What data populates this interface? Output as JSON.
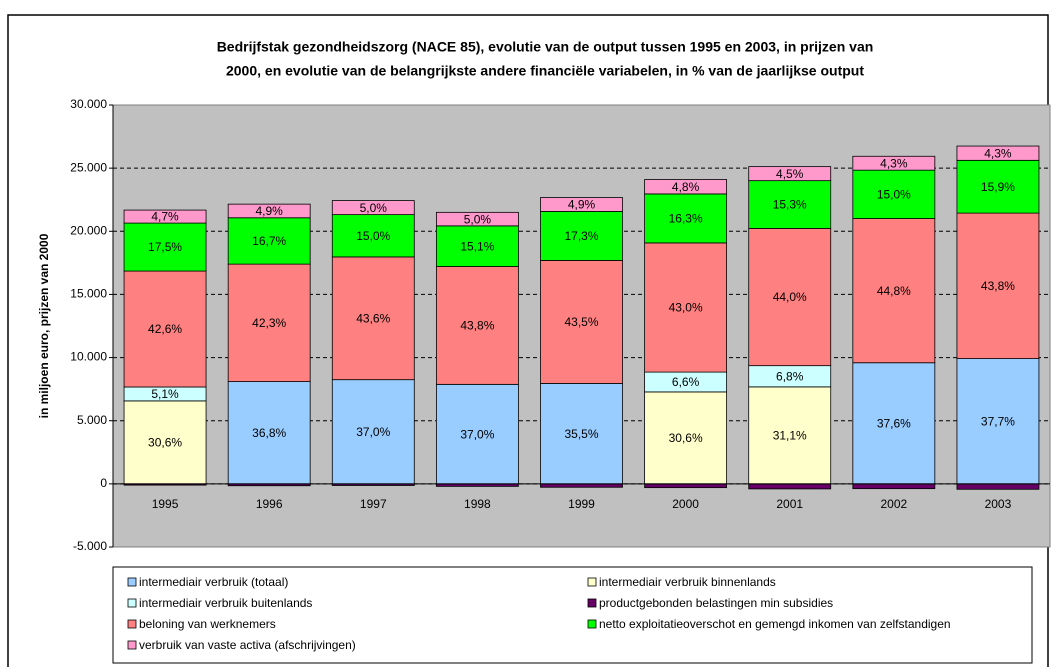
{
  "chart_data": {
    "type": "stacked-bar",
    "title": [
      "Bedrijfstak gezondheidszorg (NACE 85), evolutie van de output tussen 1995 en 2003, in prijzen van",
      "2000, en evolutie van de belangrijkste andere financiële variabelen, in % van de jaarlijkse output"
    ],
    "y_label": "in miljoen euro, prijzen van 2000",
    "categories": [
      "1995",
      "1996",
      "1997",
      "1998",
      "1999",
      "2000",
      "2001",
      "2002",
      "2003"
    ],
    "series": [
      {
        "name": "intermediair verbruik (totaal)",
        "color": "#99ccff",
        "values": [
          null,
          8100,
          8250,
          7880,
          7950,
          null,
          null,
          9590,
          9920
        ],
        "labels": [
          null,
          "36,8%",
          "37,0%",
          "37,0%",
          "35,5%",
          null,
          null,
          "37,6%",
          "37,7%"
        ]
      },
      {
        "name": "intermediair verbruik binnenlands",
        "color": "#ffffcc",
        "values": [
          6570,
          null,
          null,
          null,
          null,
          7280,
          7680,
          null,
          null
        ],
        "labels": [
          "30,6%",
          null,
          null,
          null,
          null,
          "30,6%",
          "31,1%",
          null,
          null
        ]
      },
      {
        "name": "intermediair verbruik buitenlands",
        "color": "#ccffff",
        "values": [
          1100,
          null,
          null,
          null,
          null,
          1570,
          1680,
          null,
          null
        ],
        "labels": [
          "5,1%",
          null,
          null,
          null,
          null,
          "6,6%",
          "6,8%",
          null,
          null
        ]
      },
      {
        "name": "productgebonden belastingen min subsidies",
        "color": "#660066",
        "values": [
          -100,
          -150,
          -130,
          -200,
          -270,
          -300,
          -400,
          -380,
          -430
        ]
      },
      {
        "name": "beloning van werknemers",
        "color": "#ff8080",
        "values": [
          9180,
          9300,
          9720,
          9330,
          9740,
          10230,
          10870,
          11420,
          11520
        ],
        "labels": [
          "42,6%",
          "42,3%",
          "43,6%",
          "43,8%",
          "43,5%",
          "43,0%",
          "44,0%",
          "44,8%",
          "43,8%"
        ]
      },
      {
        "name": "netto exploitatieoverschot en gemengd inkomen van zelfstandigen",
        "color": "#00ff00",
        "values": [
          3800,
          3670,
          3350,
          3220,
          3880,
          3880,
          3780,
          3830,
          4180
        ],
        "labels": [
          "17,5%",
          "16,7%",
          "15,0%",
          "15,1%",
          "17,3%",
          "16,3%",
          "15,3%",
          "15,0%",
          "15,9%"
        ]
      },
      {
        "name": "verbruik van vaste activa (afschrijvingen)",
        "color": "#ff99cc",
        "values": [
          1030,
          1080,
          1110,
          1070,
          1100,
          1140,
          1110,
          1100,
          1130
        ],
        "labels": [
          "4,7%",
          "4,9%",
          "5,0%",
          "5,0%",
          "4,9%",
          "4,8%",
          "4,5%",
          "4,3%",
          "4,3%"
        ]
      }
    ],
    "ylim": [
      -5000,
      30000
    ],
    "yticks": [
      {
        "value": -5000,
        "label": "-5.000"
      },
      0,
      {
        "value": 5000,
        "label": "5.000"
      },
      {
        "value": 10000,
        "label": "10.000"
      },
      {
        "value": 15000,
        "label": "15.000"
      },
      {
        "value": 20000,
        "label": "20.000"
      },
      {
        "value": 25000,
        "label": "25.000"
      },
      {
        "value": 30000,
        "label": "30.000"
      }
    ],
    "grid": true
  }
}
